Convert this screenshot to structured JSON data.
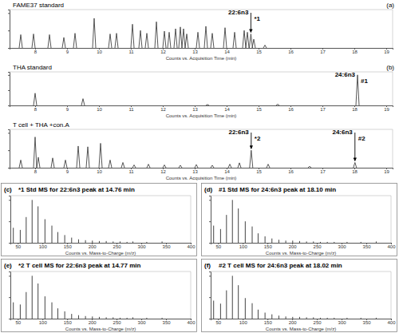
{
  "chart_data": [
    {
      "type": "chromatogram",
      "title": "FAME37 standard",
      "panel": "(a)",
      "x_label": "Counts vs. Acquisition Time (min)",
      "color": "#444444",
      "x": [
        7.55,
        7.95,
        8.45,
        8.9,
        9.25,
        9.85,
        10.35,
        10.55,
        11.05,
        11.3,
        11.5,
        11.8,
        12.05,
        12.2,
        12.4,
        12.55,
        12.65,
        12.75,
        13.1,
        13.35,
        13.55,
        13.95,
        14.25,
        14.55,
        14.65,
        14.76,
        14.85,
        15.2
      ],
      "values": [
        38,
        40,
        38,
        30,
        42,
        85,
        40,
        42,
        68,
        50,
        42,
        75,
        48,
        45,
        55,
        60,
        55,
        40,
        45,
        62,
        42,
        58,
        45,
        50,
        45,
        40,
        25,
        8
      ],
      "xlim": [
        7.2,
        19.2
      ],
      "xticks": [
        8,
        9,
        10,
        11,
        12,
        13,
        14,
        15,
        16,
        17,
        18,
        19
      ],
      "ylim": [
        0,
        110
      ],
      "yticks": [
        0,
        50,
        100
      ],
      "tick_labels": "x",
      "annotations": [
        {
          "label": "22:6n3",
          "marker": "*1",
          "x": 14.76
        }
      ]
    },
    {
      "type": "chromatogram",
      "title": "THA standard",
      "panel": "(b)",
      "x_label": "Counts vs. Acquisition Time (min)",
      "color": "#444444",
      "x": [
        8.0,
        9.5,
        13.4,
        15.6,
        18.1
      ],
      "values": [
        40,
        22,
        3,
        4,
        100
      ],
      "xlim": [
        7.2,
        19.2
      ],
      "xticks": [
        8,
        9,
        10,
        11,
        12,
        13,
        14,
        15,
        16,
        17,
        18,
        19
      ],
      "ylim": [
        0,
        110
      ],
      "yticks": [
        0,
        50,
        100
      ],
      "tick_labels": "x",
      "annotations": [
        {
          "label": "24:6n3",
          "marker": "#1",
          "x": 18.1
        }
      ]
    },
    {
      "type": "chromatogram",
      "title": "T cell + THA +con.A",
      "x_label": "Counts vs. Acquisition Time (min)",
      "color": "#444444",
      "x": [
        7.55,
        8.0,
        8.1,
        8.55,
        8.95,
        9.35,
        9.65,
        10.05,
        10.35,
        10.75,
        11.1,
        11.55,
        12.05,
        12.55,
        13.05,
        13.55,
        14.1,
        14.4,
        14.77,
        15.3,
        16.6,
        18.02
      ],
      "values": [
        22,
        88,
        30,
        28,
        22,
        62,
        60,
        70,
        22,
        15,
        8,
        10,
        8,
        7,
        9,
        7,
        10,
        14,
        50,
        10,
        4,
        15
      ],
      "xlim": [
        7.2,
        19.2
      ],
      "xticks": [
        8,
        9,
        10,
        11,
        12,
        13,
        14,
        15,
        16,
        17,
        18,
        19
      ],
      "ylim": [
        0,
        110
      ],
      "yticks": [
        0,
        50,
        100
      ],
      "tick_labels": "x",
      "annotations": [
        {
          "label": "22:6n3",
          "marker": "*2",
          "x": 14.77
        },
        {
          "label": "24:6n3",
          "marker": "#2",
          "x": 18.02
        }
      ]
    },
    {
      "type": "stick",
      "title": "*1 Std MS for 22:6n3 peak at 14.76 min",
      "panel": "(c)",
      "x_label": "Counts vs. Mass-to-Charge (m/z)",
      "color": "#444444",
      "x": [
        41,
        55,
        67,
        79,
        91,
        105,
        119,
        131,
        145,
        159,
        173,
        187,
        201,
        215,
        229,
        243,
        257,
        271,
        283,
        311,
        342
      ],
      "values": [
        35,
        30,
        60,
        100,
        85,
        55,
        40,
        25,
        18,
        12,
        8,
        6,
        5,
        4,
        4,
        3,
        3,
        2,
        3,
        2,
        3
      ],
      "xlim": [
        35,
        400
      ],
      "xticks": [
        50,
        100,
        150,
        200,
        250,
        300,
        350,
        400
      ],
      "ylim": [
        0,
        110
      ],
      "yticks": [
        0,
        50,
        100
      ],
      "tick_labels": "x"
    },
    {
      "type": "stick",
      "title": "#1 Std MS for 24:6n3 peak at 18.10 min",
      "panel": "(d)",
      "x_label": "Counts vs. Mass-to-Charge (m/z)",
      "color": "#444444",
      "x": [
        41,
        55,
        67,
        79,
        91,
        105,
        119,
        131,
        145,
        159,
        173,
        187,
        201,
        215,
        229,
        243,
        257,
        271,
        285,
        311,
        339,
        370
      ],
      "values": [
        40,
        32,
        65,
        100,
        80,
        50,
        38,
        22,
        15,
        10,
        7,
        5,
        5,
        4,
        3,
        3,
        2,
        2,
        2,
        2,
        2,
        3
      ],
      "xlim": [
        35,
        400
      ],
      "xticks": [
        50,
        100,
        150,
        200,
        250,
        300,
        350,
        400
      ],
      "ylim": [
        0,
        110
      ],
      "yticks": [
        0,
        50,
        100
      ],
      "tick_labels": "x"
    },
    {
      "type": "stick",
      "title": "*2 T cell MS for 22:6n3 peak at 14.77 min",
      "panel": "(e)",
      "x_label": "Counts vs. Mass-to-Charge (m/z)",
      "color": "#444444",
      "x": [
        41,
        55,
        67,
        79,
        91,
        105,
        119,
        131,
        145,
        159,
        173,
        187,
        201,
        215,
        229,
        243,
        257,
        271,
        283,
        311,
        342
      ],
      "values": [
        38,
        33,
        62,
        100,
        82,
        52,
        38,
        24,
        17,
        11,
        8,
        6,
        5,
        4,
        3,
        3,
        2,
        2,
        3,
        2,
        2
      ],
      "xlim": [
        35,
        400
      ],
      "xticks": [
        50,
        100,
        150,
        200,
        250,
        300,
        350,
        400
      ],
      "ylim": [
        0,
        110
      ],
      "yticks": [
        0,
        50,
        100
      ],
      "tick_labels": "x"
    },
    {
      "type": "stick",
      "title": "#2 T cell MS for 24:6n3 peak at 18.02 min",
      "panel": "(f)",
      "x_label": "Counts vs. Mass-to-Charge (m/z)",
      "color": "#444444",
      "x": [
        41,
        55,
        67,
        79,
        91,
        105,
        119,
        131,
        145,
        159,
        173,
        187,
        201,
        215,
        229,
        243,
        257,
        271,
        285,
        311,
        339,
        370
      ],
      "values": [
        42,
        35,
        66,
        100,
        78,
        48,
        36,
        21,
        14,
        10,
        7,
        5,
        4,
        4,
        3,
        3,
        2,
        2,
        2,
        2,
        2,
        2
      ],
      "xlim": [
        35,
        400
      ],
      "xticks": [
        50,
        100,
        150,
        200,
        250,
        300,
        350,
        400
      ],
      "ylim": [
        0,
        110
      ],
      "yticks": [
        0,
        50,
        100
      ],
      "tick_labels": "x"
    }
  ]
}
